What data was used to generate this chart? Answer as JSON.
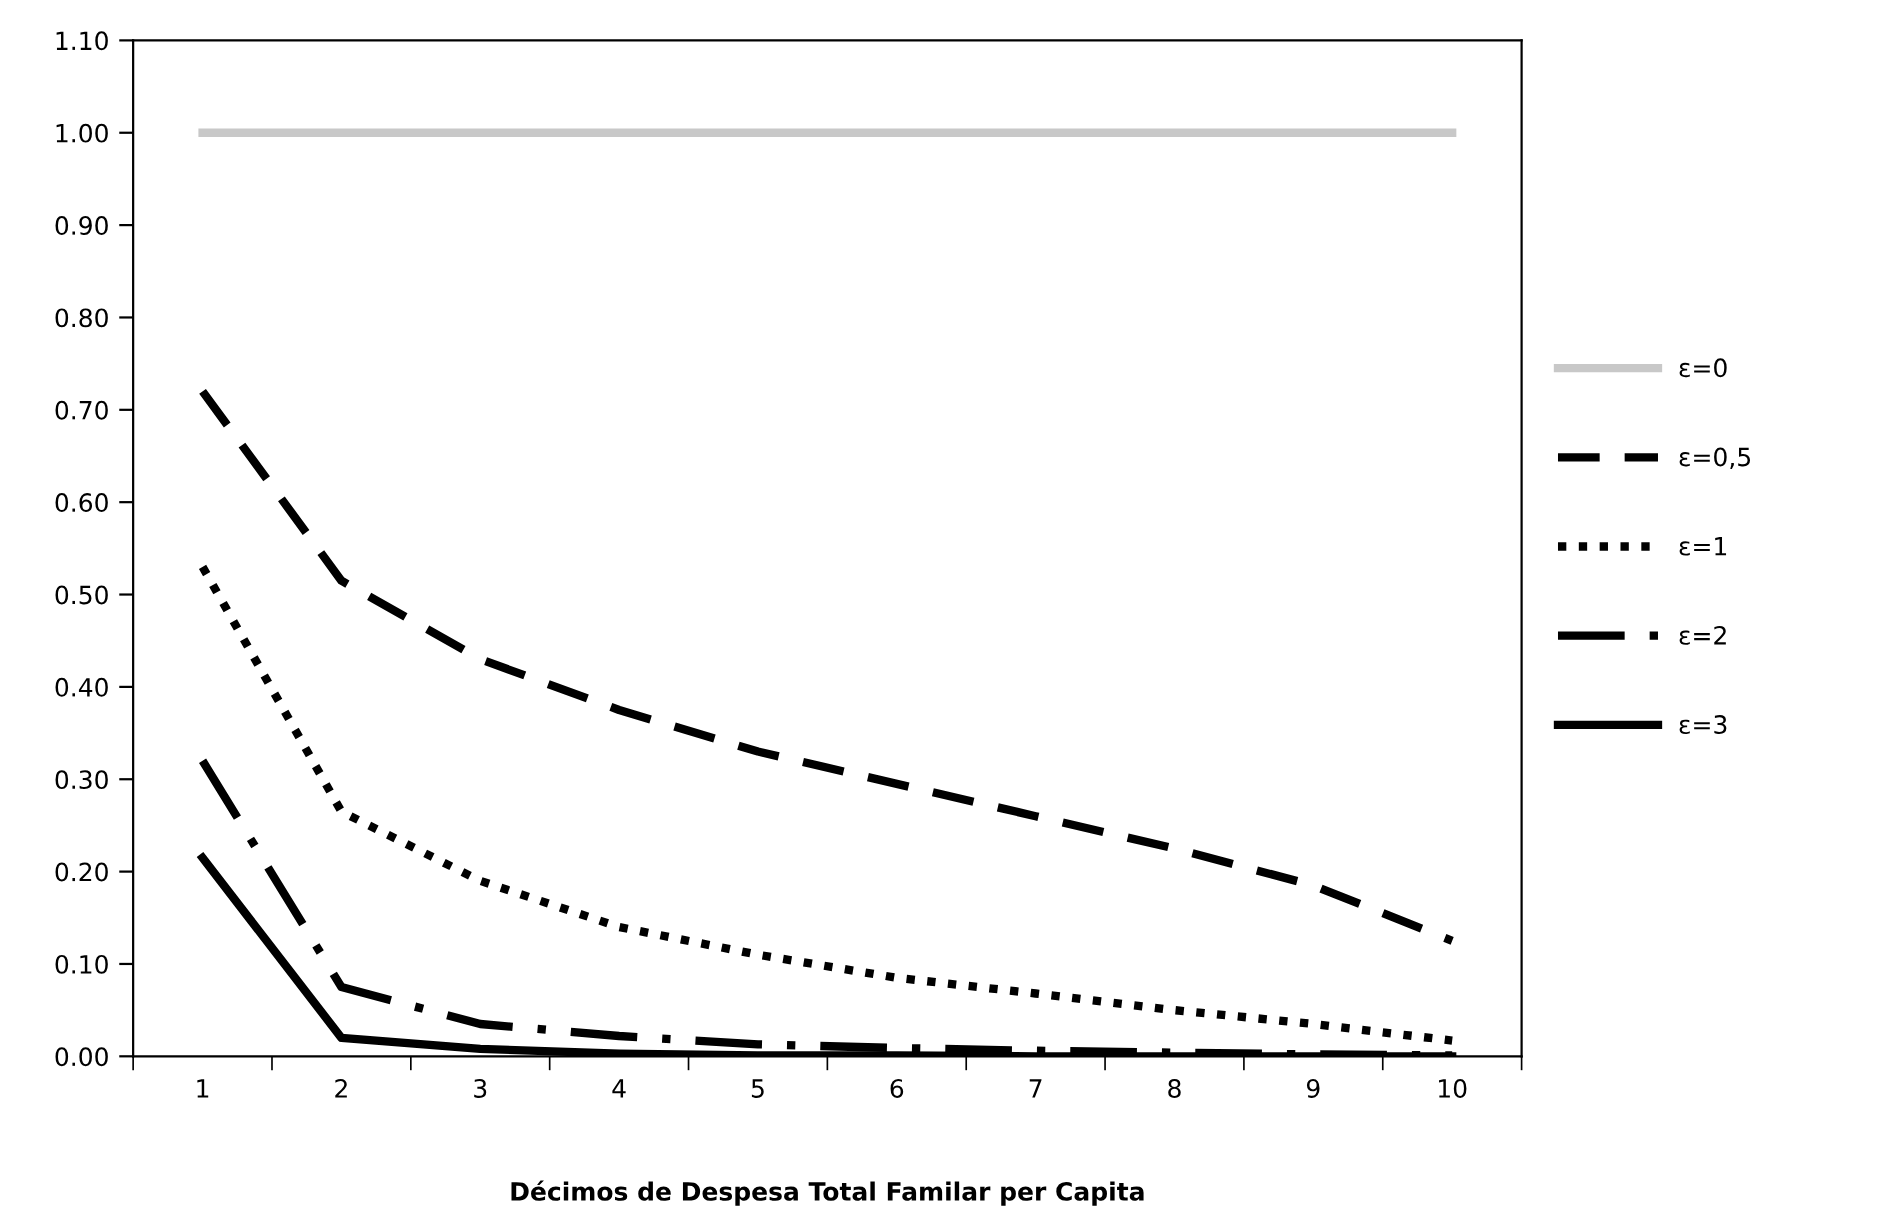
{
  "chart_data": {
    "type": "line",
    "xlabel": "Décimos de Despesa Total Familar per Capita",
    "categories": [
      "1",
      "2",
      "3",
      "4",
      "5",
      "6",
      "7",
      "8",
      "9",
      "10"
    ],
    "ylim": [
      0,
      1.1
    ],
    "yticks": [
      {
        "value": 0,
        "label": "0.00"
      },
      {
        "value": 0.1,
        "label": "0.10"
      },
      {
        "value": 0.2,
        "label": "0.20"
      },
      {
        "value": 0.3,
        "label": "0.30"
      },
      {
        "value": 0.4,
        "label": "0.40"
      },
      {
        "value": 0.5,
        "label": "0.50"
      },
      {
        "value": 0.6,
        "label": "0.60"
      },
      {
        "value": 0.7,
        "label": "0.70"
      },
      {
        "value": 0.8,
        "label": "0.80"
      },
      {
        "value": 0.9,
        "label": "0.90"
      },
      {
        "value": 1.0,
        "label": "1.00"
      },
      {
        "value": 1.1,
        "label": "1.10"
      }
    ],
    "legend": "right",
    "grid": false,
    "marker": "none",
    "series": [
      {
        "name": "ε=0",
        "color": "#c8c8c8",
        "line_style": "solid",
        "values": [
          1,
          1,
          1,
          1,
          1,
          1,
          1,
          1,
          1,
          1
        ]
      },
      {
        "name": "ε=0,5",
        "color": "#000000",
        "line_style": "dashed",
        "values": [
          0.72,
          0.515,
          0.43,
          0.375,
          0.33,
          0.295,
          0.26,
          0.225,
          0.185,
          0.125
        ]
      },
      {
        "name": "ε=1",
        "color": "#000000",
        "line_style": "dotted",
        "values": [
          0.53,
          0.265,
          0.19,
          0.14,
          0.11,
          0.085,
          0.068,
          0.05,
          0.035,
          0.017
        ]
      },
      {
        "name": "ε=2",
        "color": "#000000",
        "line_style": "dashdot",
        "values": [
          0.32,
          0.075,
          0.035,
          0.022,
          0.013,
          0.009,
          0.006,
          0.004,
          0.002,
          0.001
        ]
      },
      {
        "name": "ε=3",
        "color": "#000000",
        "line_style": "solid",
        "values": [
          0.215,
          0.02,
          0.008,
          0.003,
          0.001,
          0.001,
          0,
          0,
          0,
          0
        ]
      }
    ]
  }
}
